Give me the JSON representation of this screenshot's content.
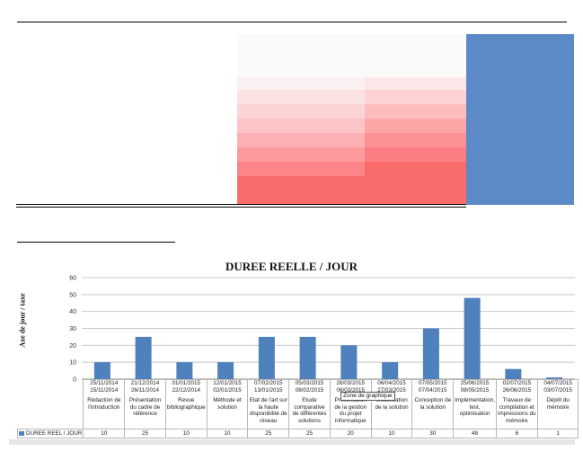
{
  "chart_data": {
    "type": "bar",
    "title": "DUREE REELLE / JOUR",
    "ylabel": "Axe de jour / taxe",
    "ylim": [
      0,
      60
    ],
    "yticks": [
      0,
      10,
      20,
      30,
      40,
      50,
      60
    ],
    "grid": true,
    "bar_color": "#4f81bd",
    "categories": [
      {
        "end": "25/11/2014",
        "start": "15/11/2014",
        "task": "Rédaction de l'introduction"
      },
      {
        "end": "21/12/2014",
        "start": "26/11/2014",
        "task": "Présentation du cadre de référence"
      },
      {
        "end": "01/01/2015",
        "start": "22/12/2014",
        "task": "Revue bibliographique"
      },
      {
        "end": "12/01/2015",
        "start": "02/01/2015",
        "task": "Méthode et solution"
      },
      {
        "end": "07/02/2015",
        "start": "13/01/2015",
        "task": "Etat de l'art sur la haute disponibilité de réseau"
      },
      {
        "end": "05/03/2015",
        "start": "08/02/2015",
        "task": "Etude comparative de différentes solutions"
      },
      {
        "end": "26/03/2015",
        "start": "06/03/2015",
        "task": "Présentation de la gestion du projet informatique"
      },
      {
        "end": "06/04/2015",
        "start": "27/03/2015",
        "task": "Modélisation de la solution"
      },
      {
        "end": "07/05/2015",
        "start": "07/04/2015",
        "task": "Conception de la solution"
      },
      {
        "end": "25/06/2015",
        "start": "08/05/2015",
        "task": "Implémentation, test, optimisation"
      },
      {
        "end": "02/07/2015",
        "start": "26/06/2015",
        "task": "Travaux de compilation et impressions du mémoire"
      },
      {
        "end": "04/07/2015",
        "start": "03/07/2015",
        "task": "Dépôt du mémoire"
      }
    ],
    "series": [
      {
        "name": "DUREE REEL / JOUR",
        "values": [
          10,
          25,
          10,
          10,
          25,
          25,
          20,
          10,
          30,
          48,
          6,
          1
        ]
      }
    ],
    "table_values": [
      "10",
      "25",
      "10",
      "10",
      "25",
      "25",
      "20",
      "10",
      "30",
      "48",
      "6",
      "1"
    ]
  },
  "tooltip": "Zone de graphique",
  "colors": {
    "block": "#5b8ac6",
    "gradient_dark": "#fa6b6b",
    "gradient_light": "#fbf4f5"
  }
}
